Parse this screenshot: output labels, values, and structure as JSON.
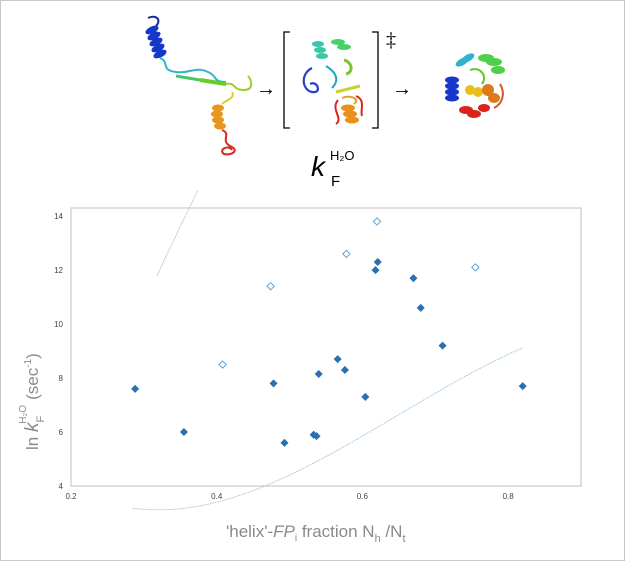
{
  "scheme": {
    "ts_symbol": "‡",
    "k_symbol": "k",
    "k_subscript": "F",
    "k_superscript": "H₂O"
  },
  "chart_data": {
    "type": "scatter",
    "title": "",
    "xlabel_prefix": "'helix'-",
    "xlabel_fp": "FP",
    "xlabel_fp_sub": "i",
    "xlabel_rest": " fraction N",
    "xlabel_sub_h": "h",
    "xlabel_mid": " /N",
    "xlabel_sub_t": "t",
    "ylabel_ln": "ln ",
    "ylabel_k": "k",
    "ylabel_sub": "F",
    "ylabel_sup": "H₂O",
    "ylabel_unit": "(sec",
    "ylabel_unit_sup": "-1",
    "ylabel_unit_close": ")",
    "xlim": [
      0.2,
      0.9
    ],
    "ylim": [
      4,
      14.3
    ],
    "xticks": [
      "0.2",
      "0.4",
      "0.6",
      "0.8"
    ],
    "xtick_values": [
      0.2,
      0.4,
      0.6,
      0.8
    ],
    "yticks": [
      "4",
      "6",
      "8",
      "10",
      "12",
      "14"
    ],
    "ytick_values": [
      4,
      6,
      8,
      10,
      12,
      14
    ],
    "grid": false,
    "colors": {
      "filled": "#2a6fb0",
      "open": "#5aa7dc",
      "fit": "#9fc3dc"
    },
    "series": [
      {
        "marker": "filled-diamond",
        "points": [
          [
            0.288,
            7.6
          ],
          [
            0.355,
            6.0
          ],
          [
            0.478,
            7.8
          ],
          [
            0.493,
            5.6
          ],
          [
            0.533,
            5.9
          ],
          [
            0.537,
            5.85
          ],
          [
            0.54,
            8.15
          ],
          [
            0.566,
            8.7
          ],
          [
            0.576,
            8.3
          ],
          [
            0.604,
            7.3
          ],
          [
            0.618,
            12.0
          ],
          [
            0.621,
            12.3
          ],
          [
            0.67,
            11.7
          ],
          [
            0.68,
            10.6
          ],
          [
            0.71,
            9.2
          ],
          [
            0.82,
            7.7
          ]
        ]
      },
      {
        "marker": "open-diamond",
        "points": [
          [
            0.408,
            8.5
          ],
          [
            0.474,
            11.4
          ],
          [
            0.578,
            12.6
          ],
          [
            0.62,
            13.8
          ],
          [
            0.755,
            12.1
          ]
        ]
      }
    ],
    "fits": [
      {
        "from": "filled",
        "coef_cubic": [
          -49.54,
          96.37,
          -46.48,
          9.745
        ],
        "x_range": [
          0.285,
          0.82
        ]
      },
      {
        "from": "open",
        "coef_cubic": [
          -36.92,
          -6.26,
          73.91,
          -9.9
        ],
        "x_range": [
          0.318,
          0.82
        ]
      }
    ]
  }
}
